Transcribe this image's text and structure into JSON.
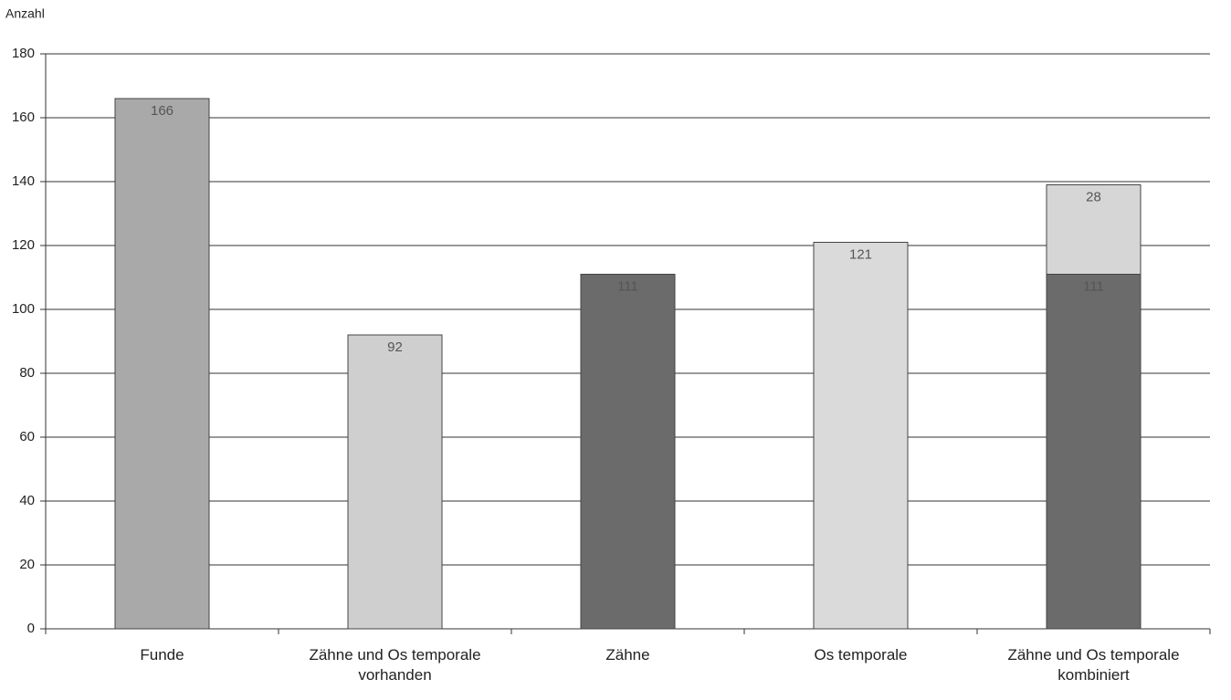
{
  "chart_data": {
    "type": "stacked_bar",
    "y_label": "Anzahl",
    "categories": [
      "Funde",
      "Zähne und Os temporale vorhanden",
      "Zähne",
      "Os temporale",
      "Zähne und Os temporale kombiniert"
    ],
    "series": [
      {
        "colors": [
          "#a9a9a9",
          "#cfcfcf",
          "#6b6b6b",
          "#dadada",
          "#6b6b6b"
        ],
        "values": [
          166,
          92,
          111,
          121,
          111
        ]
      },
      {
        "color": "#d6d6d6",
        "values": [
          null,
          null,
          null,
          null,
          28
        ]
      }
    ],
    "ylim": [
      0,
      180
    ],
    "yticks": [
      0,
      20,
      40,
      60,
      80,
      100,
      120,
      140,
      160,
      180
    ],
    "grid": true
  }
}
